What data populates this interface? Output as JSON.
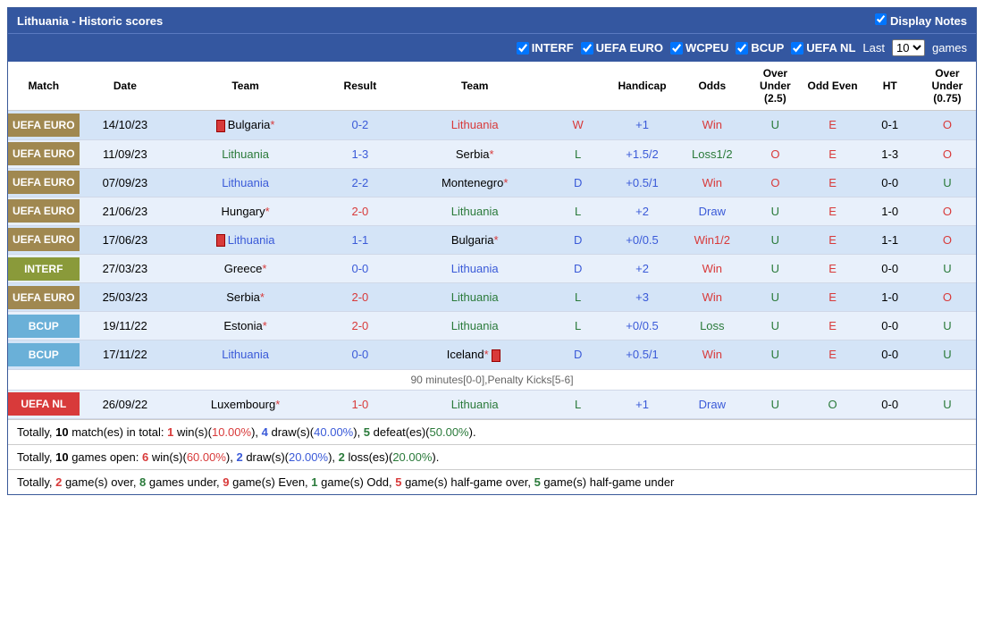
{
  "header": {
    "title": "Lithuania - Historic scores",
    "display_notes": "Display Notes"
  },
  "filters": {
    "items": [
      "INTERF",
      "UEFA EURO",
      "WCPEU",
      "BCUP",
      "UEFA NL"
    ],
    "last_label": "Last",
    "games_label": "games",
    "selected": "10"
  },
  "columns": [
    "Match",
    "Date",
    "Team",
    "Result",
    "Team",
    "",
    "Handicap",
    "Odds",
    "Over Under (2.5)",
    "Odd Even",
    "HT",
    "Over Under (0.75)"
  ],
  "rows": [
    {
      "badge": "UEFA EURO",
      "bcls": "badge-uefa-euro",
      "date": "14/10/23",
      "t1": "Bulgaria",
      "t1c": "c-black",
      "t1r": true,
      "t1s": "*",
      "res": "0-2",
      "rc": "c-blue",
      "t2": "Lithuania",
      "t2c": "c-red",
      "t2s": "",
      "wdl": "W",
      "wc": "c-red",
      "hcp": "+1",
      "odds": "Win",
      "oc": "c-red",
      "ou": "U",
      "ouc": "c-green",
      "oe": "E",
      "oec": "c-red",
      "ht": "0-1",
      "ou2": "O",
      "ou2c": "c-red",
      "row": "row-light"
    },
    {
      "badge": "UEFA EURO",
      "bcls": "badge-uefa-euro",
      "date": "11/09/23",
      "t1": "Lithuania",
      "t1c": "c-green",
      "t1s": "",
      "res": "1-3",
      "rc": "c-blue",
      "t2": "Serbia",
      "t2c": "c-black",
      "t2s": "*",
      "wdl": "L",
      "wc": "c-green",
      "hcp": "+1.5/2",
      "odds": "Loss1/2",
      "oc": "c-green",
      "ou": "O",
      "ouc": "c-red",
      "oe": "E",
      "oec": "c-red",
      "ht": "1-3",
      "ou2": "O",
      "ou2c": "c-red",
      "row": "row-lighter"
    },
    {
      "badge": "UEFA EURO",
      "bcls": "badge-uefa-euro",
      "date": "07/09/23",
      "t1": "Lithuania",
      "t1c": "c-blue",
      "t1s": "",
      "res": "2-2",
      "rc": "c-blue",
      "t2": "Montenegro",
      "t2c": "c-black",
      "t2s": "*",
      "wdl": "D",
      "wc": "c-blue",
      "hcp": "+0.5/1",
      "odds": "Win",
      "oc": "c-red",
      "ou": "O",
      "ouc": "c-red",
      "oe": "E",
      "oec": "c-red",
      "ht": "0-0",
      "ou2": "U",
      "ou2c": "c-green",
      "row": "row-light"
    },
    {
      "badge": "UEFA EURO",
      "bcls": "badge-uefa-euro",
      "date": "21/06/23",
      "t1": "Hungary",
      "t1c": "c-black",
      "t1s": "*",
      "res": "2-0",
      "rc": "c-red",
      "t2": "Lithuania",
      "t2c": "c-green",
      "t2s": "",
      "wdl": "L",
      "wc": "c-green",
      "hcp": "+2",
      "odds": "Draw",
      "oc": "c-blue",
      "ou": "U",
      "ouc": "c-green",
      "oe": "E",
      "oec": "c-red",
      "ht": "1-0",
      "ou2": "O",
      "ou2c": "c-red",
      "row": "row-lighter"
    },
    {
      "badge": "UEFA EURO",
      "bcls": "badge-uefa-euro",
      "date": "17/06/23",
      "t1": "Lithuania",
      "t1c": "c-blue",
      "t1r": true,
      "t1s": "",
      "res": "1-1",
      "rc": "c-blue",
      "t2": "Bulgaria",
      "t2c": "c-black",
      "t2s": "*",
      "wdl": "D",
      "wc": "c-blue",
      "hcp": "+0/0.5",
      "odds": "Win1/2",
      "oc": "c-red",
      "ou": "U",
      "ouc": "c-green",
      "oe": "E",
      "oec": "c-red",
      "ht": "1-1",
      "ou2": "O",
      "ou2c": "c-red",
      "row": "row-light"
    },
    {
      "badge": "INTERF",
      "bcls": "badge-interf",
      "date": "27/03/23",
      "t1": "Greece",
      "t1c": "c-black",
      "t1s": "*",
      "res": "0-0",
      "rc": "c-blue",
      "t2": "Lithuania",
      "t2c": "c-blue",
      "t2s": "",
      "wdl": "D",
      "wc": "c-blue",
      "hcp": "+2",
      "odds": "Win",
      "oc": "c-red",
      "ou": "U",
      "ouc": "c-green",
      "oe": "E",
      "oec": "c-red",
      "ht": "0-0",
      "ou2": "U",
      "ou2c": "c-green",
      "row": "row-lighter"
    },
    {
      "badge": "UEFA EURO",
      "bcls": "badge-uefa-euro",
      "date": "25/03/23",
      "t1": "Serbia",
      "t1c": "c-black",
      "t1s": "*",
      "res": "2-0",
      "rc": "c-red",
      "t2": "Lithuania",
      "t2c": "c-green",
      "t2s": "",
      "wdl": "L",
      "wc": "c-green",
      "hcp": "+3",
      "odds": "Win",
      "oc": "c-red",
      "ou": "U",
      "ouc": "c-green",
      "oe": "E",
      "oec": "c-red",
      "ht": "1-0",
      "ou2": "O",
      "ou2c": "c-red",
      "row": "row-light"
    },
    {
      "badge": "BCUP",
      "bcls": "badge-bcup",
      "date": "19/11/22",
      "t1": "Estonia",
      "t1c": "c-black",
      "t1s": "*",
      "res": "2-0",
      "rc": "c-red",
      "t2": "Lithuania",
      "t2c": "c-green",
      "t2s": "",
      "wdl": "L",
      "wc": "c-green",
      "hcp": "+0/0.5",
      "odds": "Loss",
      "oc": "c-green",
      "ou": "U",
      "ouc": "c-green",
      "oe": "E",
      "oec": "c-red",
      "ht": "0-0",
      "ou2": "U",
      "ou2c": "c-green",
      "row": "row-lighter"
    },
    {
      "badge": "BCUP",
      "bcls": "badge-bcup",
      "date": "17/11/22",
      "t1": "Lithuania",
      "t1c": "c-blue",
      "t1s": "",
      "res": "0-0",
      "rc": "c-blue",
      "t2": "Iceland",
      "t2c": "c-black",
      "t2s": "*",
      "t2r": true,
      "wdl": "D",
      "wc": "c-blue",
      "hcp": "+0.5/1",
      "odds": "Win",
      "oc": "c-red",
      "ou": "U",
      "ouc": "c-green",
      "oe": "E",
      "oec": "c-red",
      "ht": "0-0",
      "ou2": "U",
      "ou2c": "c-green",
      "row": "row-light",
      "note": "90 minutes[0-0],Penalty Kicks[5-6]"
    },
    {
      "badge": "UEFA NL",
      "bcls": "badge-uefa-nl",
      "date": "26/09/22",
      "t1": "Luxembourg",
      "t1c": "c-black",
      "t1s": "*",
      "res": "1-0",
      "rc": "c-red",
      "t2": "Lithuania",
      "t2c": "c-green",
      "t2s": "",
      "wdl": "L",
      "wc": "c-green",
      "hcp": "+1",
      "odds": "Draw",
      "oc": "c-blue",
      "ou": "U",
      "ouc": "c-green",
      "oe": "O",
      "oec": "c-green",
      "ht": "0-0",
      "ou2": "U",
      "ou2c": "c-green",
      "row": "row-lighter"
    }
  ],
  "summary": [
    {
      "pre": "Totally, ",
      "parts": [
        {
          "t": "10",
          "c": "c-black",
          "b": true
        },
        {
          "t": " match(es) in total: "
        },
        {
          "t": "1",
          "c": "c-red",
          "b": true
        },
        {
          "t": " win(s)("
        },
        {
          "t": "10.00%",
          "c": "c-red"
        },
        {
          "t": "), "
        },
        {
          "t": "4",
          "c": "c-blue",
          "b": true
        },
        {
          "t": " draw(s)("
        },
        {
          "t": "40.00%",
          "c": "c-blue"
        },
        {
          "t": "), "
        },
        {
          "t": "5",
          "c": "c-green",
          "b": true
        },
        {
          "t": " defeat(es)("
        },
        {
          "t": "50.00%",
          "c": "c-green"
        },
        {
          "t": ")."
        }
      ]
    },
    {
      "pre": "Totally, ",
      "parts": [
        {
          "t": "10",
          "c": "c-black",
          "b": true
        },
        {
          "t": " games open: "
        },
        {
          "t": "6",
          "c": "c-red",
          "b": true
        },
        {
          "t": " win(s)("
        },
        {
          "t": "60.00%",
          "c": "c-red"
        },
        {
          "t": "), "
        },
        {
          "t": "2",
          "c": "c-blue",
          "b": true
        },
        {
          "t": " draw(s)("
        },
        {
          "t": "20.00%",
          "c": "c-blue"
        },
        {
          "t": "), "
        },
        {
          "t": "2",
          "c": "c-green",
          "b": true
        },
        {
          "t": " loss(es)("
        },
        {
          "t": "20.00%",
          "c": "c-green"
        },
        {
          "t": ")."
        }
      ]
    },
    {
      "pre": "Totally, ",
      "parts": [
        {
          "t": "2",
          "c": "c-red",
          "b": true
        },
        {
          "t": " game(s) over, "
        },
        {
          "t": "8",
          "c": "c-green",
          "b": true
        },
        {
          "t": " games under, "
        },
        {
          "t": "9",
          "c": "c-red",
          "b": true
        },
        {
          "t": " game(s) Even, "
        },
        {
          "t": "1",
          "c": "c-green",
          "b": true
        },
        {
          "t": " game(s) Odd, "
        },
        {
          "t": "5",
          "c": "c-red",
          "b": true
        },
        {
          "t": " game(s) half-game over, "
        },
        {
          "t": "5",
          "c": "c-green",
          "b": true
        },
        {
          "t": " game(s) half-game under"
        }
      ]
    }
  ]
}
